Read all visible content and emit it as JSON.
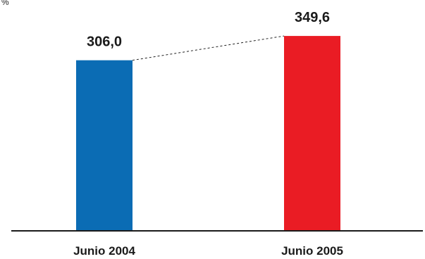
{
  "chart_data": {
    "type": "bar",
    "unit_label": "%",
    "categories": [
      "Junio 2004",
      "Junio 2005"
    ],
    "values": [
      306.0,
      349.6
    ],
    "value_labels": [
      "306,0",
      "349,6"
    ],
    "colors": [
      "#0b6cb4",
      "#ea1c24"
    ],
    "ylim": [
      0,
      380
    ],
    "connector": "dashed",
    "grid": false,
    "title": "",
    "xlabel": "",
    "ylabel": ""
  }
}
